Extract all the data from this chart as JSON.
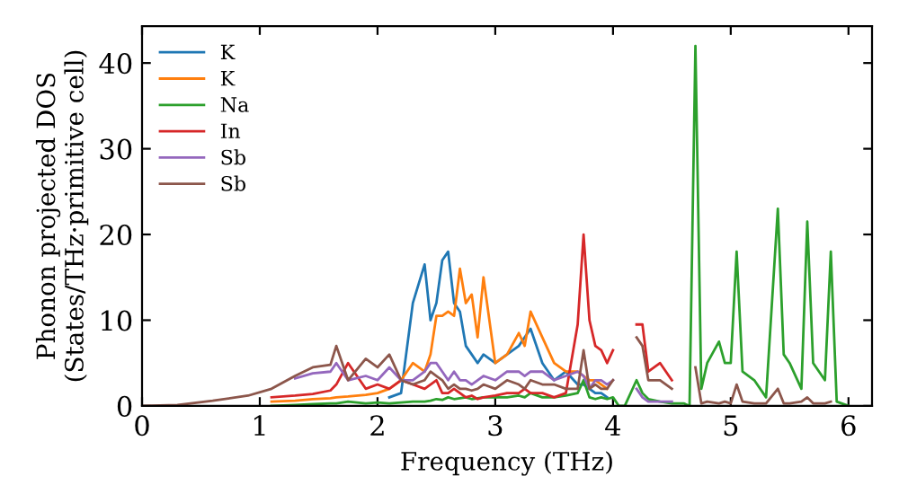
{
  "chart_data": {
    "type": "line",
    "xlabel": "Frequency (THz)",
    "ylabel": "Phonon projected DOS\n(States/THz·primitive cell)",
    "x": [
      0,
      0.3,
      0.6,
      0.9,
      1.1,
      1.3,
      1.45,
      1.6,
      1.65,
      1.75,
      1.9,
      2.0,
      2.1,
      2.2,
      2.3,
      2.4,
      2.45,
      2.5,
      2.55,
      2.6,
      2.65,
      2.7,
      2.75,
      2.8,
      2.85,
      2.9,
      3.0,
      3.1,
      3.2,
      3.25,
      3.3,
      3.4,
      3.5,
      3.6,
      3.7,
      3.75,
      3.8,
      3.85,
      3.9,
      3.95,
      4.0,
      4.05,
      4.1,
      4.2,
      4.25,
      4.3,
      4.4,
      4.5,
      4.6,
      4.65,
      4.7,
      4.75,
      4.8,
      4.9,
      4.95,
      5.0,
      5.05,
      5.1,
      5.2,
      5.3,
      5.4,
      5.45,
      5.5,
      5.6,
      5.65,
      5.7,
      5.8,
      5.85,
      5.9,
      6.0
    ],
    "series": [
      {
        "name": "K",
        "color": "#1f77b4",
        "values": [
          null,
          null,
          null,
          null,
          null,
          null,
          null,
          null,
          null,
          null,
          null,
          null,
          1,
          1.5,
          12,
          16.5,
          10,
          12,
          17,
          18,
          12,
          11,
          7,
          6,
          5,
          6,
          5,
          6,
          7,
          8,
          9,
          5,
          3,
          4,
          2.5,
          2.5,
          2,
          1.5,
          1.5,
          1,
          null,
          null,
          null,
          null,
          null,
          null,
          null,
          null,
          null,
          null,
          null,
          null,
          null,
          null,
          null,
          null,
          null,
          null,
          null,
          null,
          null,
          null,
          null,
          null,
          null,
          null,
          null,
          null,
          null,
          null
        ]
      },
      {
        "name": "K",
        "color": "#ff7f0e",
        "values": [
          null,
          null,
          null,
          null,
          0.5,
          0.6,
          0.8,
          0.9,
          1,
          1.1,
          1.3,
          1.5,
          2,
          3,
          5,
          4,
          6,
          10.5,
          10.5,
          11,
          10.5,
          16,
          12,
          13,
          8,
          15,
          5,
          6,
          8.5,
          7,
          11,
          8,
          5,
          4,
          4,
          3.5,
          3,
          3,
          2.5,
          2,
          null,
          null,
          null,
          null,
          null,
          null,
          null,
          null,
          null,
          null,
          null,
          null,
          null,
          null,
          null,
          null,
          null,
          null,
          null,
          null,
          null,
          null,
          null,
          null,
          null,
          null,
          null,
          null,
          null,
          null
        ]
      },
      {
        "name": "Na",
        "color": "#2ca02c",
        "values": [
          null,
          null,
          null,
          null,
          0,
          0.1,
          0.2,
          0.3,
          0.3,
          0.5,
          0.3,
          0.4,
          0.3,
          0.4,
          0.5,
          0.5,
          0.6,
          0.8,
          0.7,
          1,
          0.8,
          0.9,
          1,
          0.8,
          0.9,
          1,
          1,
          1,
          1.2,
          1,
          1.5,
          1,
          1,
          1.2,
          1.5,
          3,
          1,
          0.8,
          1,
          0.8,
          1,
          0,
          0,
          3,
          1.5,
          0.8,
          0.5,
          0.3,
          0.3,
          0,
          42,
          2,
          5,
          7.5,
          5,
          5,
          18,
          4,
          3,
          1,
          23,
          6,
          5,
          2,
          21.5,
          5,
          3,
          18,
          0.5,
          0
        ]
      },
      {
        "name": "In",
        "color": "#d62728",
        "values": [
          null,
          null,
          null,
          null,
          1,
          1.2,
          1.4,
          1.8,
          2.5,
          5,
          2,
          2.5,
          2,
          3,
          2.5,
          2,
          2.5,
          3,
          1.5,
          1.5,
          2,
          1.5,
          1,
          1.2,
          0.8,
          1,
          1.2,
          1.5,
          1.5,
          2,
          1.5,
          1.5,
          1,
          1.5,
          9.5,
          20,
          10,
          7,
          6.5,
          5,
          6.5,
          null,
          null,
          9.5,
          9.5,
          4,
          5,
          3,
          null,
          null,
          null,
          null,
          null,
          null,
          null,
          null,
          null,
          null,
          null,
          null,
          null,
          null,
          null,
          null,
          null,
          null,
          null,
          null,
          null,
          null
        ]
      },
      {
        "name": "Sb",
        "color": "#9467bd",
        "values": [
          null,
          null,
          null,
          null,
          null,
          3.2,
          3.8,
          4,
          5,
          3,
          3.5,
          3,
          4.5,
          3,
          3,
          4,
          5,
          5,
          4,
          3,
          4,
          3,
          3,
          2.5,
          3,
          3.5,
          3,
          4,
          4,
          3.5,
          4,
          4,
          3,
          3.5,
          4,
          3.5,
          2,
          3,
          3,
          2.5,
          3,
          null,
          null,
          2,
          1,
          0.5,
          0.5,
          0.5,
          null,
          null,
          null,
          null,
          null,
          null,
          null,
          null,
          null,
          null,
          null,
          null,
          null,
          null,
          null,
          null,
          null,
          null,
          null,
          null,
          null,
          null
        ]
      },
      {
        "name": "Sb",
        "color": "#8c564b",
        "values": [
          0,
          0.1,
          0.6,
          1.2,
          2,
          3.5,
          4.5,
          4.8,
          7,
          3,
          5.5,
          4.5,
          6,
          3,
          2.5,
          3,
          4,
          3.5,
          3,
          2,
          2.5,
          2,
          2,
          1.8,
          2,
          2.5,
          2,
          3,
          2.5,
          2,
          3,
          2.5,
          2.5,
          2,
          2,
          6.5,
          2,
          2.5,
          2,
          2,
          3,
          null,
          null,
          8,
          7,
          3,
          3,
          2,
          null,
          null,
          4.5,
          0.3,
          0.5,
          0.3,
          0.5,
          0.3,
          2.5,
          0.5,
          0.3,
          0.3,
          2,
          0.3,
          0.3,
          0.5,
          1,
          0.3,
          0.3,
          0.5,
          null,
          null
        ]
      }
    ],
    "xlim": [
      0,
      6.2
    ],
    "ylim": [
      0,
      44.3
    ],
    "xticks": [
      0,
      1,
      2,
      3,
      4,
      5,
      6
    ],
    "yticks": [
      0,
      10,
      20,
      30,
      40
    ],
    "grid": false,
    "legend": "top left",
    "marker": "none",
    "line_style": "solid"
  }
}
